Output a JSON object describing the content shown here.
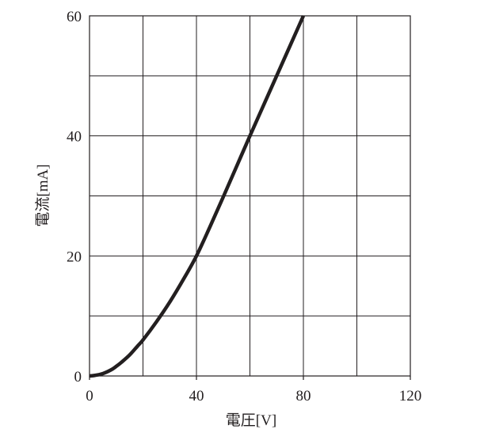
{
  "chart_data": {
    "type": "line",
    "title": "",
    "xlabel": "電圧[V]",
    "ylabel": "電流[mA]",
    "xlim": [
      0,
      120
    ],
    "ylim": [
      0,
      60
    ],
    "xticks": [
      0,
      40,
      80,
      120
    ],
    "yticks": [
      0,
      20,
      40,
      60
    ],
    "x_tick_labels": [
      "0",
      "40",
      "80",
      "120"
    ],
    "y_tick_labels": [
      "0",
      "20",
      "40",
      "60"
    ],
    "grid": true,
    "grid_x_step": 20,
    "grid_y_step": 10,
    "legend": "none",
    "line_color": "#231f20",
    "series": [
      {
        "x": [
          0,
          2,
          5,
          8,
          10,
          12,
          15,
          18,
          20,
          25,
          30,
          35,
          40,
          45,
          50,
          55,
          60,
          65,
          70,
          75,
          80
        ],
        "y": [
          0,
          0.1,
          0.4,
          1.0,
          1.6,
          2.3,
          3.5,
          5.0,
          6.0,
          9.0,
          12.3,
          16.0,
          20.0,
          24.8,
          29.8,
          34.9,
          40.0,
          45.0,
          50.0,
          55.0,
          60.0
        ]
      }
    ]
  }
}
